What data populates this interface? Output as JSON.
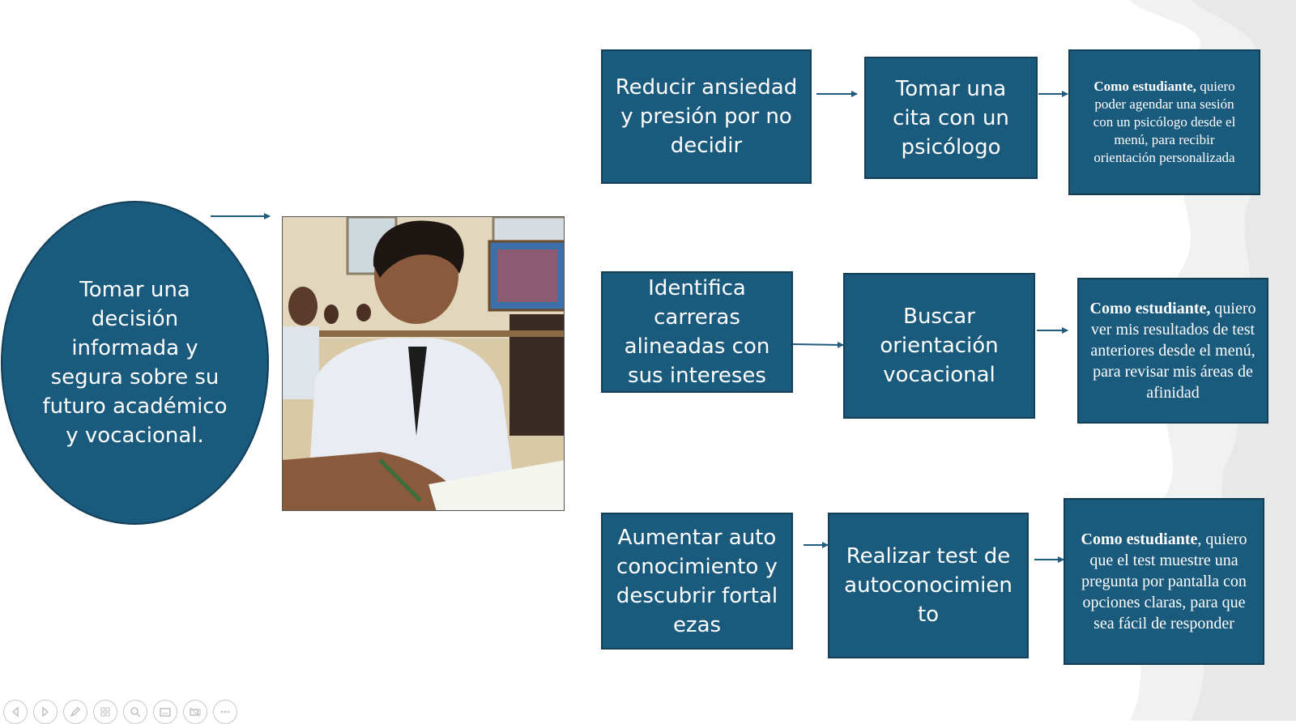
{
  "goal": {
    "text": "Tomar una decisión informada y segura sobre su futuro académico y vocacional."
  },
  "photo": {
    "description": ""
  },
  "rows": [
    {
      "objective": "Reducir ansiedad y presión por no decidir",
      "action": "Tomar una cita con un psicólogo",
      "story_lead": "Como estudiante,",
      "story_rest": " quiero poder agendar una sesión con un psicólogo desde el menú, para recibir orientación personalizada"
    },
    {
      "objective": "Identifica carreras alineadas con sus intereses",
      "action": "Buscar orientación vocacional",
      "story_lead": "Como estudiante,",
      "story_rest": " quiero ver mis resultados de test anteriores desde el menú, para revisar mis áreas de afinidad"
    },
    {
      "objective": "Aumentar autoconocimiento y descubrir fortalezas",
      "action": "Realizar test de autoconocimiento",
      "story_lead": "Como estudiante",
      "story_rest": ", quiero que el test muestre una pregunta por pantalla con opciones claras, para que sea fácil de responder"
    }
  ],
  "toolbar": {
    "icons": [
      "previous-icon",
      "next-icon",
      "pen-icon",
      "slides-icon",
      "zoom-icon",
      "subtitles-icon",
      "camera-off-icon",
      "more-icon"
    ]
  },
  "colors": {
    "box_fill": "#195a7d",
    "box_border": "#123f57",
    "arrow": "#1f5b7e"
  }
}
